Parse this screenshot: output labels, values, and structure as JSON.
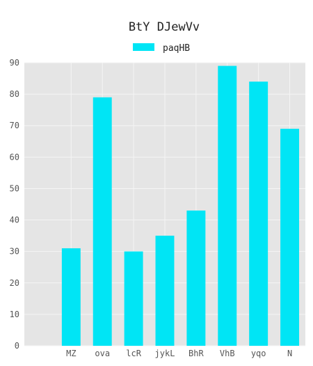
{
  "chart_data": {
    "type": "bar",
    "title": "BtY DJewVv",
    "xlabel": "",
    "ylabel": "",
    "categories": [
      "MZ",
      "ova",
      "lcR",
      "jykL",
      "BhR",
      "VhB",
      "yqo",
      "N"
    ],
    "series": [
      {
        "name": "paqHB",
        "values": [
          31,
          79,
          30,
          35,
          43,
          89,
          84,
          69
        ]
      }
    ],
    "ylim": [
      0,
      90
    ],
    "yticks": [
      0,
      10,
      20,
      30,
      40,
      50,
      60,
      70,
      80,
      90
    ],
    "xlim_slots": 9,
    "grid": true,
    "legend_position": "top-center",
    "colors": {
      "bar": "#00e5f5",
      "plot_background": "#e5e5e5",
      "grid": "#f5f5f5"
    }
  }
}
